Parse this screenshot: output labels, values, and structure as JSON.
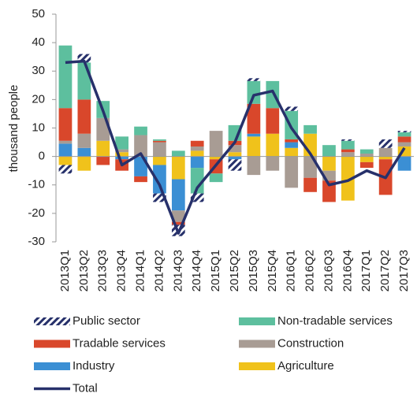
{
  "chart_data": {
    "type": "bar",
    "y_label": "thousand people",
    "categories": [
      "2013Q1",
      "2013Q2",
      "2013Q3",
      "2013Q4",
      "2014Q1",
      "2014Q2",
      "2014Q3",
      "2014Q4",
      "2015Q1",
      "2015Q2",
      "2015Q3",
      "2015Q4",
      "2016Q1",
      "2016Q2",
      "2016Q3",
      "2016Q4",
      "2017Q1",
      "2017Q2",
      "2017Q3"
    ],
    "ylim": [
      -30,
      50
    ],
    "yticks": [
      -30,
      -20,
      -10,
      0,
      10,
      20,
      30,
      40,
      50
    ],
    "stacked": true,
    "series": [
      {
        "name": "Agriculture",
        "color": "#f0c21b",
        "values": [
          -3,
          -5,
          5.5,
          1.5,
          0,
          -3,
          -8,
          2,
          -1,
          1.5,
          7,
          8,
          3,
          8,
          -5,
          -15.5,
          -2,
          -1,
          3.5
        ]
      },
      {
        "name": "Industry",
        "color": "#3b8fd4",
        "values": [
          4.5,
          3,
          0,
          -1,
          -7,
          -10,
          -11,
          -4,
          0,
          -1,
          1,
          0,
          2,
          0,
          0,
          0,
          0,
          0,
          -5
        ]
      },
      {
        "name": "Construction",
        "color": "#a89c94",
        "values": [
          1,
          5,
          8,
          1,
          7.5,
          5,
          -4,
          1.5,
          9,
          2.5,
          -6.5,
          -5,
          -11,
          -7.5,
          -3.5,
          1.5,
          1,
          3,
          1.5
        ]
      },
      {
        "name": "Tradable services",
        "color": "#d9472b",
        "values": [
          11.5,
          12,
          -3,
          -4,
          -2,
          0.5,
          -1,
          2,
          -5,
          1.5,
          10.5,
          9,
          1,
          -5,
          -7.5,
          1,
          -2,
          -12.5,
          2
        ]
      },
      {
        "name": "Non-tradable services",
        "color": "#5dbf9e",
        "values": [
          22,
          13,
          6,
          4.5,
          3,
          0.5,
          2,
          -9,
          -3,
          5.5,
          8,
          9.5,
          10,
          3,
          4,
          3,
          1.5,
          0,
          1.5
        ]
      },
      {
        "name": "Public sector",
        "color": "#27316b",
        "pattern": "hatch",
        "values": [
          -3,
          3,
          0,
          0,
          0,
          -3,
          -4,
          -3,
          0,
          -4,
          1,
          0,
          1.5,
          0,
          0,
          0.5,
          0,
          3,
          0.5
        ]
      },
      {
        "name": "Total",
        "color": "#27316b",
        "type": "line",
        "values": [
          33,
          33.5,
          16,
          -3,
          1,
          -10,
          -27,
          -11,
          -3,
          5,
          21.5,
          23,
          10,
          1,
          -10,
          -8.5,
          -5,
          -7.5,
          3
        ]
      }
    ],
    "legend_order": [
      5,
      4,
      3,
      2,
      1,
      0,
      6
    ]
  }
}
